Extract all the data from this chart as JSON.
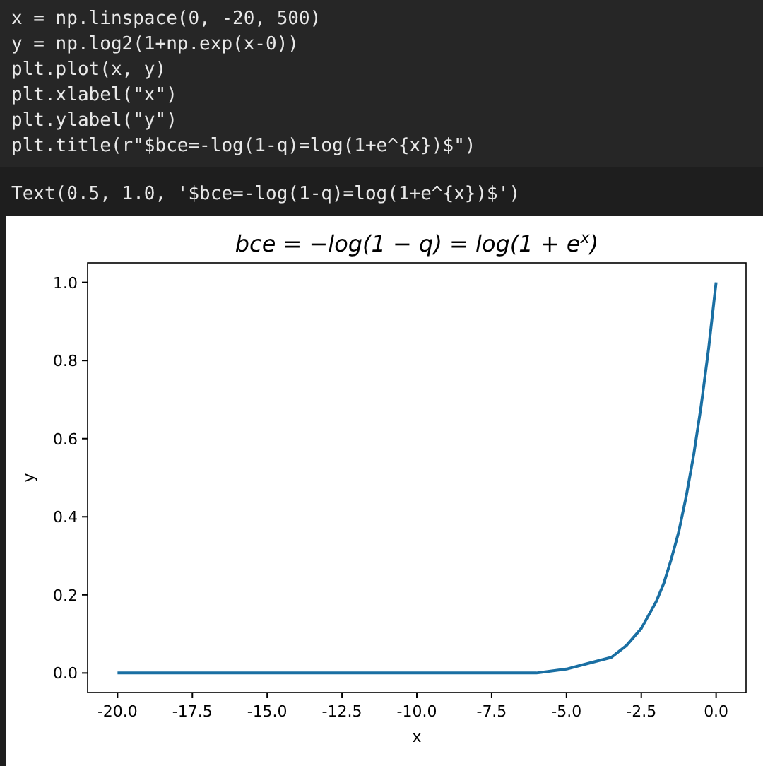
{
  "chart_data": {
    "type": "line",
    "title": "bce = −log(1 − q) = log(1 + e$^{x}$)",
    "xlabel": "x",
    "ylabel": "y",
    "annotations": [
      "x = np.linspace(0, -20, 500)",
      "y = np.log2(1+np.exp(x-0))",
      "plt.plot(x, y)",
      "plt.xlabel(\"x\")",
      "plt.ylabel(\"y\")",
      "plt.title(r\"$bce=-log(1-q)=log(1+e^{x})$\")",
      "Text(0.5, 1.0, '$bce=-log(1-q)=log(1+e^{x})$')"
    ],
    "x": [
      -20,
      -15,
      -10,
      -8,
      -7,
      -6,
      -5,
      -4.5,
      -4,
      -3.5,
      -3,
      -2.5,
      -2,
      -1.75,
      -1.5,
      -1.25,
      -1,
      -0.75,
      -0.5,
      -0.25,
      0
    ],
    "series": [
      {
        "color": "#1a6fa3",
        "values": [
          0,
          0,
          0,
          0,
          0,
          0,
          0.01,
          0.02,
          0.03,
          0.04,
          0.07,
          0.114,
          0.183,
          0.229,
          0.291,
          0.361,
          0.452,
          0.558,
          0.684,
          0.831,
          1.0
        ]
      }
    ],
    "xlim": [
      -21,
      1
    ],
    "ylim": [
      -0.05,
      1.05
    ],
    "xticks": [
      {
        "value": -20,
        "label": "-20.0"
      },
      {
        "value": -17.5,
        "label": "-17.5"
      },
      {
        "value": -15,
        "label": "-15.0"
      },
      {
        "value": -12.5,
        "label": "-12.5"
      },
      {
        "value": -10,
        "label": "-10.0"
      },
      {
        "value": -7.5,
        "label": "-7.5"
      },
      {
        "value": -5,
        "label": "-5.0"
      },
      {
        "value": -2.5,
        "label": "-2.5"
      },
      {
        "value": 0,
        "label": "0.0"
      }
    ],
    "yticks": [
      {
        "value": 0,
        "label": "0.0"
      },
      {
        "value": 0.2,
        "label": "0.2"
      },
      {
        "value": 0.4,
        "label": "0.4"
      },
      {
        "value": 0.6,
        "label": "0.6"
      },
      {
        "value": 0.8,
        "label": "0.8"
      },
      {
        "value": 1,
        "label": "1.0"
      }
    ],
    "grid": false,
    "marker": "none",
    "line_style": "solid"
  }
}
